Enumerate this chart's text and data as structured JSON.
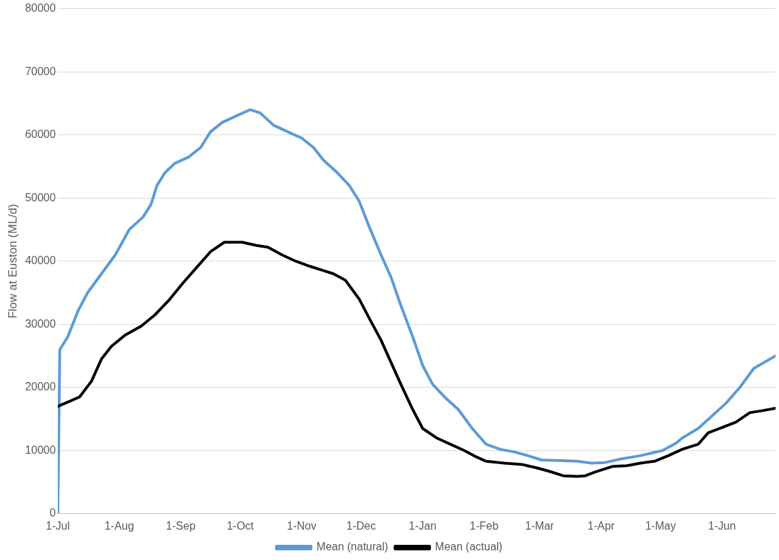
{
  "chart_data": {
    "type": "line",
    "ylabel": "Flow at Euston (ML/d)",
    "xlim": [
      "2000-07-01",
      "2001-06-28"
    ],
    "xticks": [
      {
        "value": "2000-07-01",
        "label": "1-Jul"
      },
      {
        "value": "2000-08-01",
        "label": "1-Aug"
      },
      {
        "value": "2000-09-01",
        "label": "1-Sep"
      },
      {
        "value": "2000-10-01",
        "label": "1-Oct"
      },
      {
        "value": "2000-11-01",
        "label": "1-Nov"
      },
      {
        "value": "2000-12-01",
        "label": "1-Dec"
      },
      {
        "value": "2001-01-01",
        "label": "1-Jan"
      },
      {
        "value": "2001-02-01",
        "label": "1-Feb"
      },
      {
        "value": "2001-03-01",
        "label": "1-Mar"
      },
      {
        "value": "2001-04-01",
        "label": "1-Apr"
      },
      {
        "value": "2001-05-01",
        "label": "1-May"
      },
      {
        "value": "2001-06-01",
        "label": "1-Jun"
      }
    ],
    "ylim": [
      0,
      80000
    ],
    "yticks": [
      0,
      10000,
      20000,
      30000,
      40000,
      50000,
      60000,
      70000,
      80000
    ],
    "grid": "y",
    "legend": "bottom",
    "marker": "none",
    "line_style": "solid",
    "series": [
      {
        "name": "Mean (natural)",
        "color": "#5b9bd5",
        "x": [
          "2000-07-01",
          "2000-07-02",
          "2000-07-06",
          "2000-07-11",
          "2000-07-16",
          "2000-07-23",
          "2000-07-30",
          "2000-08-06",
          "2000-08-13",
          "2000-08-17",
          "2000-08-20",
          "2000-08-24",
          "2000-08-29",
          "2000-09-05",
          "2000-09-11",
          "2000-09-16",
          "2000-09-22",
          "2000-09-29",
          "2000-10-06",
          "2000-10-11",
          "2000-10-18",
          "2000-10-25",
          "2000-11-01",
          "2000-11-07",
          "2000-11-12",
          "2000-11-19",
          "2000-11-25",
          "2000-11-30",
          "2000-12-05",
          "2000-12-11",
          "2000-12-16",
          "2000-12-21",
          "2000-12-27",
          "2001-01-01",
          "2001-01-06",
          "2001-01-12",
          "2001-01-19",
          "2001-01-26",
          "2001-02-02",
          "2001-02-09",
          "2001-02-16",
          "2001-02-23",
          "2001-03-02",
          "2001-03-13",
          "2001-03-20",
          "2001-03-27",
          "2001-04-03",
          "2001-04-10",
          "2001-04-21",
          "2001-05-02",
          "2001-05-09",
          "2001-05-12",
          "2001-05-20",
          "2001-05-27",
          "2001-06-03",
          "2001-06-10",
          "2001-06-17",
          "2001-06-28"
        ],
        "values": [
          0,
          26000,
          28000,
          32000,
          35000,
          38000,
          41000,
          45000,
          47000,
          49000,
          52000,
          54000,
          55500,
          56500,
          58000,
          60500,
          62000,
          63000,
          64000,
          63500,
          61500,
          60500,
          59500,
          58000,
          56000,
          54000,
          52000,
          49500,
          45500,
          41000,
          37500,
          33000,
          28000,
          23500,
          20500,
          18500,
          16500,
          13500,
          11000,
          10200,
          9800,
          9200,
          8500,
          8400,
          8300,
          8000,
          8100,
          8600,
          9200,
          10000,
          11200,
          12000,
          13500,
          15500,
          17500,
          20000,
          23000,
          25000
        ]
      },
      {
        "name": "Mean (actual)",
        "color": "#000000",
        "x": [
          "2000-07-01",
          "2000-07-07",
          "2000-07-12",
          "2000-07-18",
          "2000-07-23",
          "2000-07-28",
          "2000-08-04",
          "2000-08-12",
          "2000-08-19",
          "2000-08-26",
          "2000-09-02",
          "2000-09-09",
          "2000-09-16",
          "2000-09-23",
          "2000-10-02",
          "2000-10-09",
          "2000-10-15",
          "2000-10-22",
          "2000-10-29",
          "2000-11-05",
          "2000-11-12",
          "2000-11-17",
          "2000-11-23",
          "2000-11-30",
          "2000-12-05",
          "2000-12-11",
          "2000-12-16",
          "2000-12-21",
          "2000-12-27",
          "2001-01-01",
          "2001-01-08",
          "2001-01-15",
          "2001-01-22",
          "2001-01-28",
          "2001-02-02",
          "2001-02-11",
          "2001-02-20",
          "2001-02-27",
          "2001-03-06",
          "2001-03-13",
          "2001-03-20",
          "2001-03-24",
          "2001-03-29",
          "2001-04-07",
          "2001-04-14",
          "2001-04-21",
          "2001-04-28",
          "2001-05-05",
          "2001-05-12",
          "2001-05-20",
          "2001-05-25",
          "2001-05-30",
          "2001-06-08",
          "2001-06-15",
          "2001-06-21",
          "2001-06-28"
        ],
        "values": [
          17000,
          17800,
          18500,
          21000,
          24500,
          26500,
          28300,
          29700,
          31500,
          33800,
          36500,
          39000,
          41500,
          43000,
          43000,
          42500,
          42200,
          41000,
          40000,
          39200,
          38500,
          38000,
          37000,
          34000,
          31000,
          27500,
          24000,
          20500,
          16500,
          13500,
          12000,
          11000,
          10000,
          9000,
          8300,
          8000,
          7800,
          7300,
          6700,
          6000,
          5900,
          6000,
          6600,
          7500,
          7600,
          8000,
          8300,
          9200,
          10200,
          11000,
          12800,
          13400,
          14500,
          16000,
          16300,
          16700
        ]
      }
    ]
  }
}
